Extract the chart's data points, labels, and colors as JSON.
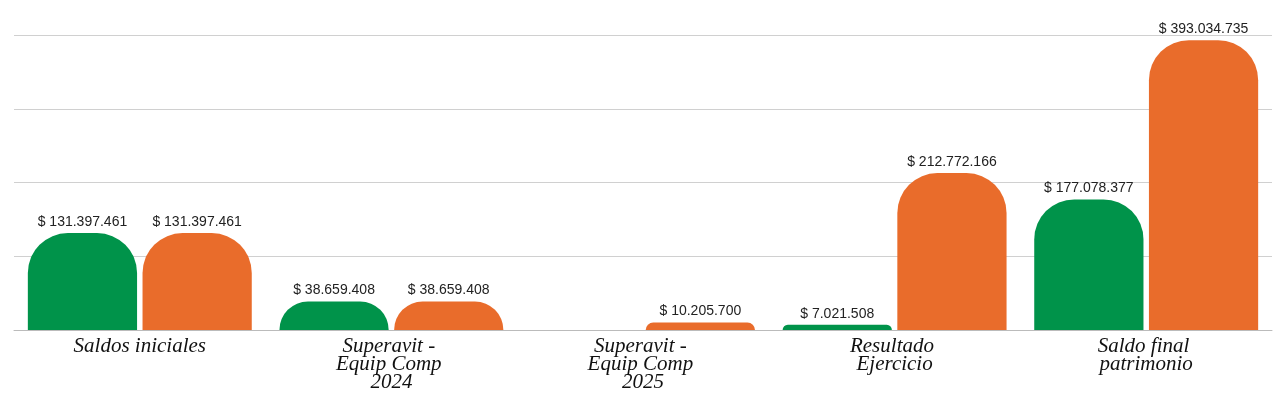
{
  "chart_data": {
    "type": "bar",
    "categories": [
      "Saldos iniciales",
      "Superavit - Equip Comp 2024",
      "Superavit - Equip Comp 2025",
      "Resultado Ejercicio",
      "Saldo final patrimonio"
    ],
    "series": [
      {
        "color": "#00934a",
        "values": [
          131397461,
          38659408,
          null,
          7021508,
          177078377
        ],
        "value_labels": [
          "$ 131.397.461",
          "$ 38.659.408",
          null,
          "$ 7.021.508",
          "$ 177.078.377"
        ]
      },
      {
        "color": "#e96c2b",
        "values": [
          131397461,
          38659408,
          10205700,
          212772166,
          393034735
        ],
        "value_labels": [
          "$ 131.397.461",
          "$ 38.659.408",
          "$ 10.205.700",
          "$ 212.772.166",
          "$ 393.034.735"
        ]
      }
    ],
    "ylim": [
      0,
      400000000
    ],
    "yticks": [
      {
        "value": 0,
        "label": null
      },
      {
        "value": 100000000,
        "label": null
      },
      {
        "value": 200000000,
        "label": null
      },
      {
        "value": 300000000,
        "label": null
      },
      {
        "value": 400000000,
        "label": null
      }
    ],
    "grid": "y",
    "tick_labels": "x"
  }
}
